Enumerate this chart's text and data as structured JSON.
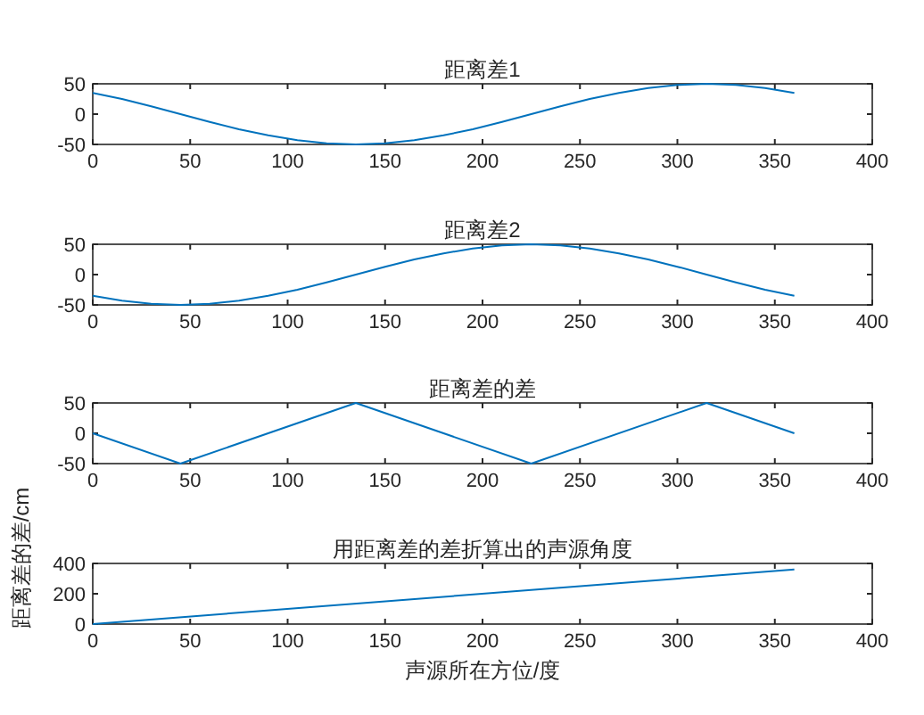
{
  "chart_data": [
    {
      "type": "line",
      "title": "距离差1",
      "x": [
        0,
        15,
        30,
        45,
        60,
        75,
        90,
        105,
        120,
        135,
        150,
        165,
        180,
        195,
        210,
        225,
        240,
        255,
        270,
        285,
        300,
        315,
        330,
        345,
        360
      ],
      "series": [
        {
          "color": "#0072bd",
          "values": [
            35,
            25,
            13,
            0,
            -13,
            -25,
            -35,
            -43,
            -48,
            -50,
            -48,
            -43,
            -35,
            -25,
            -13,
            0,
            13,
            25,
            35,
            43,
            48,
            50,
            48,
            43,
            35
          ]
        }
      ],
      "xlim": [
        0,
        400
      ],
      "xticks": [
        0,
        50,
        100,
        150,
        200,
        250,
        300,
        350,
        400
      ],
      "ylim": [
        -50,
        50
      ],
      "yticks": [
        -50,
        0,
        50
      ]
    },
    {
      "type": "line",
      "title": "距离差2",
      "x": [
        0,
        15,
        30,
        45,
        60,
        75,
        90,
        105,
        120,
        135,
        150,
        165,
        180,
        195,
        210,
        225,
        240,
        255,
        270,
        285,
        300,
        315,
        330,
        345,
        360
      ],
      "series": [
        {
          "color": "#0072bd",
          "values": [
            -35,
            -43,
            -48,
            -50,
            -48,
            -43,
            -35,
            -25,
            -13,
            0,
            13,
            25,
            35,
            43,
            48,
            50,
            48,
            43,
            35,
            25,
            13,
            0,
            -13,
            -25,
            -35
          ]
        }
      ],
      "xlim": [
        0,
        400
      ],
      "xticks": [
        0,
        50,
        100,
        150,
        200,
        250,
        300,
        350,
        400
      ],
      "ylim": [
        -50,
        50
      ],
      "yticks": [
        -50,
        0,
        50
      ]
    },
    {
      "type": "line",
      "title": "距离差的差",
      "x": [
        0,
        45,
        135,
        225,
        315,
        360
      ],
      "series": [
        {
          "color": "#0072bd",
          "values": [
            0,
            -50,
            50,
            -50,
            50,
            0
          ]
        }
      ],
      "xlim": [
        0,
        400
      ],
      "xticks": [
        0,
        50,
        100,
        150,
        200,
        250,
        300,
        350,
        400
      ],
      "ylim": [
        -50,
        50
      ],
      "yticks": [
        -50,
        0,
        50
      ]
    },
    {
      "type": "line",
      "title": "用距离差的差折算出的声源角度",
      "xlabel": "声源所在方位/度",
      "ylabel": "距离差的差/cm",
      "x": [
        0,
        360
      ],
      "series": [
        {
          "color": "#0072bd",
          "values": [
            0,
            360
          ]
        }
      ],
      "xlim": [
        0,
        400
      ],
      "xticks": [
        0,
        50,
        100,
        150,
        200,
        250,
        300,
        350,
        400
      ],
      "ylim": [
        0,
        400
      ],
      "yticks": [
        0,
        200,
        400
      ]
    }
  ]
}
